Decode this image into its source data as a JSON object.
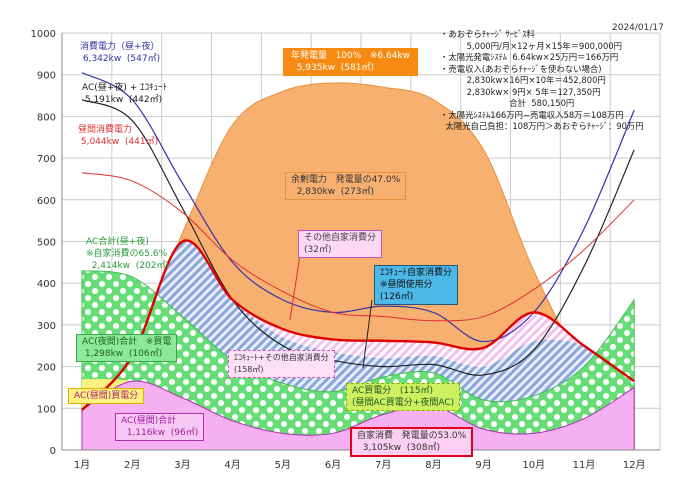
{
  "date": "2024/01/17",
  "notes": [
    "・あおぞらﾁｬｰｼﾞ ｻｰﾋﾞｽ料",
    "          5,000円/月×12ヶ月×15年＝900,000円",
    "・太陽光発電ｼｽﾃﾑ  6.64kw×25万円＝166万円",
    "・売電収入(あおぞらﾁｬｰｼﾞを使わない場合)",
    "          2,830kw×16円×10年＝452,800円",
    "          2,830kw× 9円× 5年＝127,350円",
    "                          合計  580,150円",
    "・太陽光ｼｽﾃﾑ166万円−売電収入58万＝108万円",
    "  太陽光自己負担：108万円＞あおぞらﾁｬｰｼﾞ：90万円"
  ],
  "labels": {
    "consumption": "消費電力（昼+夜）\n 6,342kw  (547㎡)",
    "ac_ecocute": "AC(昼+夜) + ｴｺｷｭｰﾄ\n 5,191kw  (442㎡)",
    "daytime": "昼間消費電力\n 5,044kw  (441㎡)",
    "ac_total": "AC合計(昼+夜)\n※自家消費の65.6%\n  2,414kw  (202㎡)",
    "ac_night": "AC(夜間)合計   ※買電\n 1,298kw  (106㎡)",
    "ac_day_buy": "AC(昼間)買電分",
    "ac_day": "AC(昼間)合計\n  1,116kw  (96㎡)",
    "generation": "年発電量   100%   ※6.64kw\n  5,935kw  (581㎡)",
    "surplus": "余剰電力   発電量の47.0%\n  2,830kw  (273㎡)",
    "other_self": "その他自家消費分\n(32㎡)",
    "ecocute_self": "ｴｺｷｭｰﾄ自家消費分\n※昼間使用分\n(126㎡)",
    "ecocute_other": "ｴｺｷｭｰﾄ+その他自家消費分\n(158㎡)",
    "ac_buy": "AC買電分   (115㎡)\n(昼間AC買電分+夜間AC)",
    "self": "自家消費   発電量の53.0%\n  3,105kw  (308㎡)"
  },
  "chart_data": {
    "type": "area",
    "categories": [
      "1月",
      "2月",
      "3月",
      "4月",
      "5月",
      "6月",
      "7月",
      "8月",
      "9月",
      "10月",
      "11月",
      "12月"
    ],
    "ylim": [
      0,
      1000
    ],
    "yticks": [
      0,
      100,
      200,
      300,
      400,
      500,
      600,
      700,
      800,
      900,
      1000
    ],
    "grid": true,
    "series": [
      {
        "name": "消費電力（昼+夜）",
        "kind": "line",
        "color": "#3333aa",
        "values": [
          905,
          840,
          640,
          450,
          360,
          330,
          345,
          330,
          260,
          330,
          530,
          815
        ]
      },
      {
        "name": "AC(昼+夜) + ｴｺｷｭｰﾄ",
        "kind": "line",
        "color": "#222222",
        "values": [
          840,
          790,
          580,
          360,
          250,
          215,
          200,
          205,
          180,
          240,
          440,
          720
        ]
      },
      {
        "name": "昼間消費電力",
        "kind": "line",
        "color": "#e03030",
        "values": [
          665,
          645,
          570,
          455,
          380,
          330,
          320,
          310,
          320,
          385,
          480,
          600
        ]
      },
      {
        "name": "年発電量",
        "kind": "area",
        "color": "#f8b070",
        "values": [
          100,
          230,
          520,
          780,
          860,
          880,
          870,
          840,
          720,
          430,
          210,
          160
        ]
      },
      {
        "name": "自家消費",
        "kind": "line",
        "color": "#e00000",
        "values": [
          96,
          225,
          500,
          360,
          290,
          265,
          262,
          258,
          245,
          330,
          250,
          165
        ]
      },
      {
        "name": "AC合計(昼+夜)",
        "kind": "area",
        "color": "#66dd77",
        "values": [
          430,
          415,
          320,
          215,
          160,
          140,
          175,
          185,
          120,
          130,
          200,
          360
        ]
      },
      {
        "name": "AC(昼間)合計",
        "kind": "area",
        "color": "#f4b0f0",
        "values": [
          170,
          165,
          125,
          70,
          40,
          40,
          85,
          105,
          50,
          40,
          75,
          150
        ]
      }
    ]
  }
}
